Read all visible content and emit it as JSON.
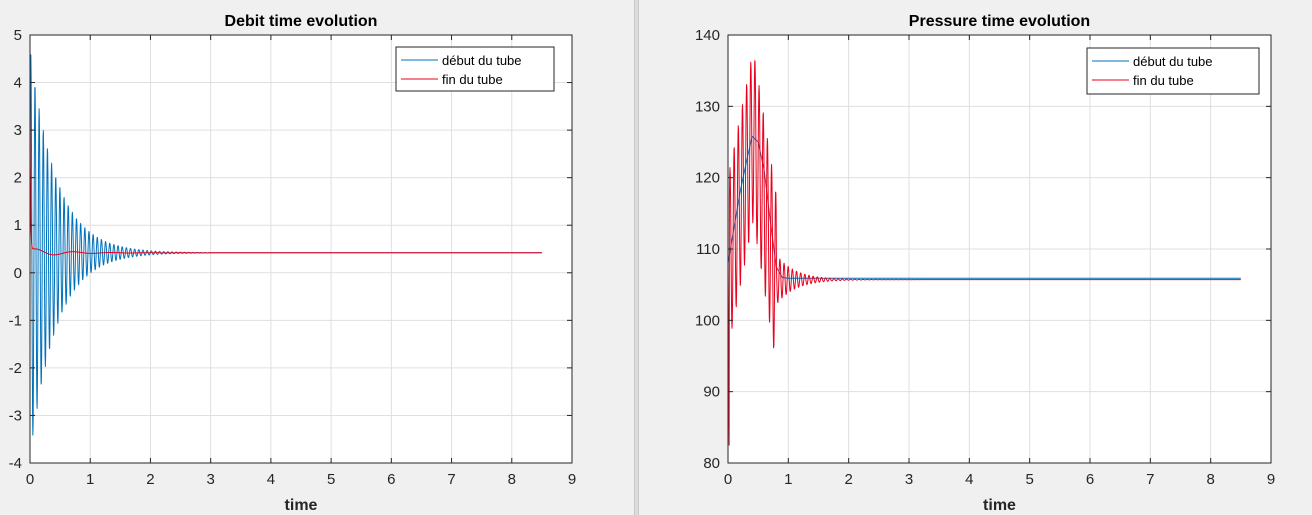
{
  "chart_data": [
    {
      "type": "line",
      "title": "Debit time evolution",
      "xlabel": "time",
      "ylabel": "",
      "xlim": [
        0,
        9
      ],
      "ylim": [
        -4,
        5
      ],
      "xticks": [
        0,
        1,
        2,
        3,
        4,
        5,
        6,
        7,
        8,
        9
      ],
      "yticks": [
        -4,
        -3,
        -2,
        -1,
        0,
        1,
        2,
        3,
        4,
        5
      ],
      "grid": true,
      "legend_position": "top-right",
      "series": [
        {
          "name": "début du tube",
          "color": "#0072bd",
          "signal": {
            "t_end": 8.5,
            "start": 0.5,
            "final": 0.42,
            "amplitude": 4.3,
            "decay": 2.3,
            "frequency": 14.5
          }
        },
        {
          "name": "fin du tube",
          "color": "#e8001c",
          "signal": {
            "t_end": 8.5,
            "start": 3.9,
            "final": 0.42,
            "amplitude": 0.1,
            "decay": 2.0,
            "frequency": 1.6
          }
        }
      ]
    },
    {
      "type": "line",
      "title": "Pressure time evolution",
      "xlabel": "time",
      "ylabel": "",
      "xlim": [
        0,
        9
      ],
      "ylim": [
        80,
        140
      ],
      "xticks": [
        0,
        1,
        2,
        3,
        4,
        5,
        6,
        7,
        8,
        9
      ],
      "yticks": [
        80,
        90,
        100,
        110,
        120,
        130,
        140
      ],
      "grid": true,
      "legend_position": "top-right",
      "series": [
        {
          "name": "début du tube",
          "color": "#0072bd",
          "points": [
            [
              0,
              108
            ],
            [
              0.1,
              113
            ],
            [
              0.2,
              118
            ],
            [
              0.3,
              122
            ],
            [
              0.4,
              125.8
            ],
            [
              0.5,
              125
            ],
            [
              0.6,
              121
            ],
            [
              0.7,
              114
            ],
            [
              0.8,
              107.5
            ],
            [
              0.9,
              106
            ],
            [
              1.0,
              105.9
            ],
            [
              2.0,
              105.9
            ],
            [
              8.5,
              105.9
            ]
          ]
        },
        {
          "name": "fin du tube",
          "color": "#e8001c",
          "signal": {
            "t_end": 8.5,
            "final": 105.7,
            "env_peak": 126,
            "env_peak_t": 0.42,
            "amplitude": 12,
            "frequency": 14.5,
            "first_min": 81
          }
        }
      ]
    }
  ]
}
